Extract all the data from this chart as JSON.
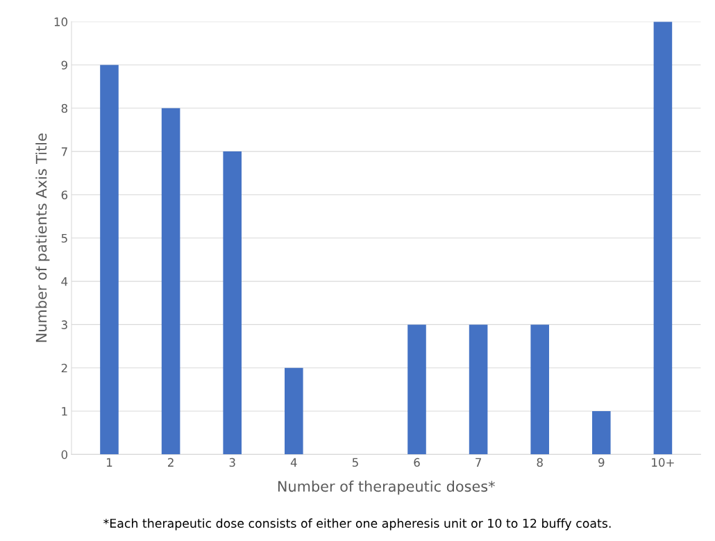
{
  "chart_data": {
    "type": "bar",
    "xlabel": "Number of therapeutic doses*",
    "ylabel": "Number of patients Axis Title",
    "categories": [
      "1",
      "2",
      "3",
      "4",
      "5",
      "6",
      "7",
      "8",
      "9",
      "10+"
    ],
    "values": [
      9,
      8,
      7,
      2,
      0,
      3,
      3,
      3,
      1,
      10
    ],
    "color": "#4472c4",
    "ylim": [
      0,
      10
    ],
    "yticks": [
      0,
      1,
      2,
      3,
      4,
      5,
      6,
      7,
      8,
      9,
      10
    ],
    "grid": "y",
    "annotations": [
      "*Each therapeutic dose consists of either one apheresis unit or 10 to 12 buffy coats."
    ]
  }
}
